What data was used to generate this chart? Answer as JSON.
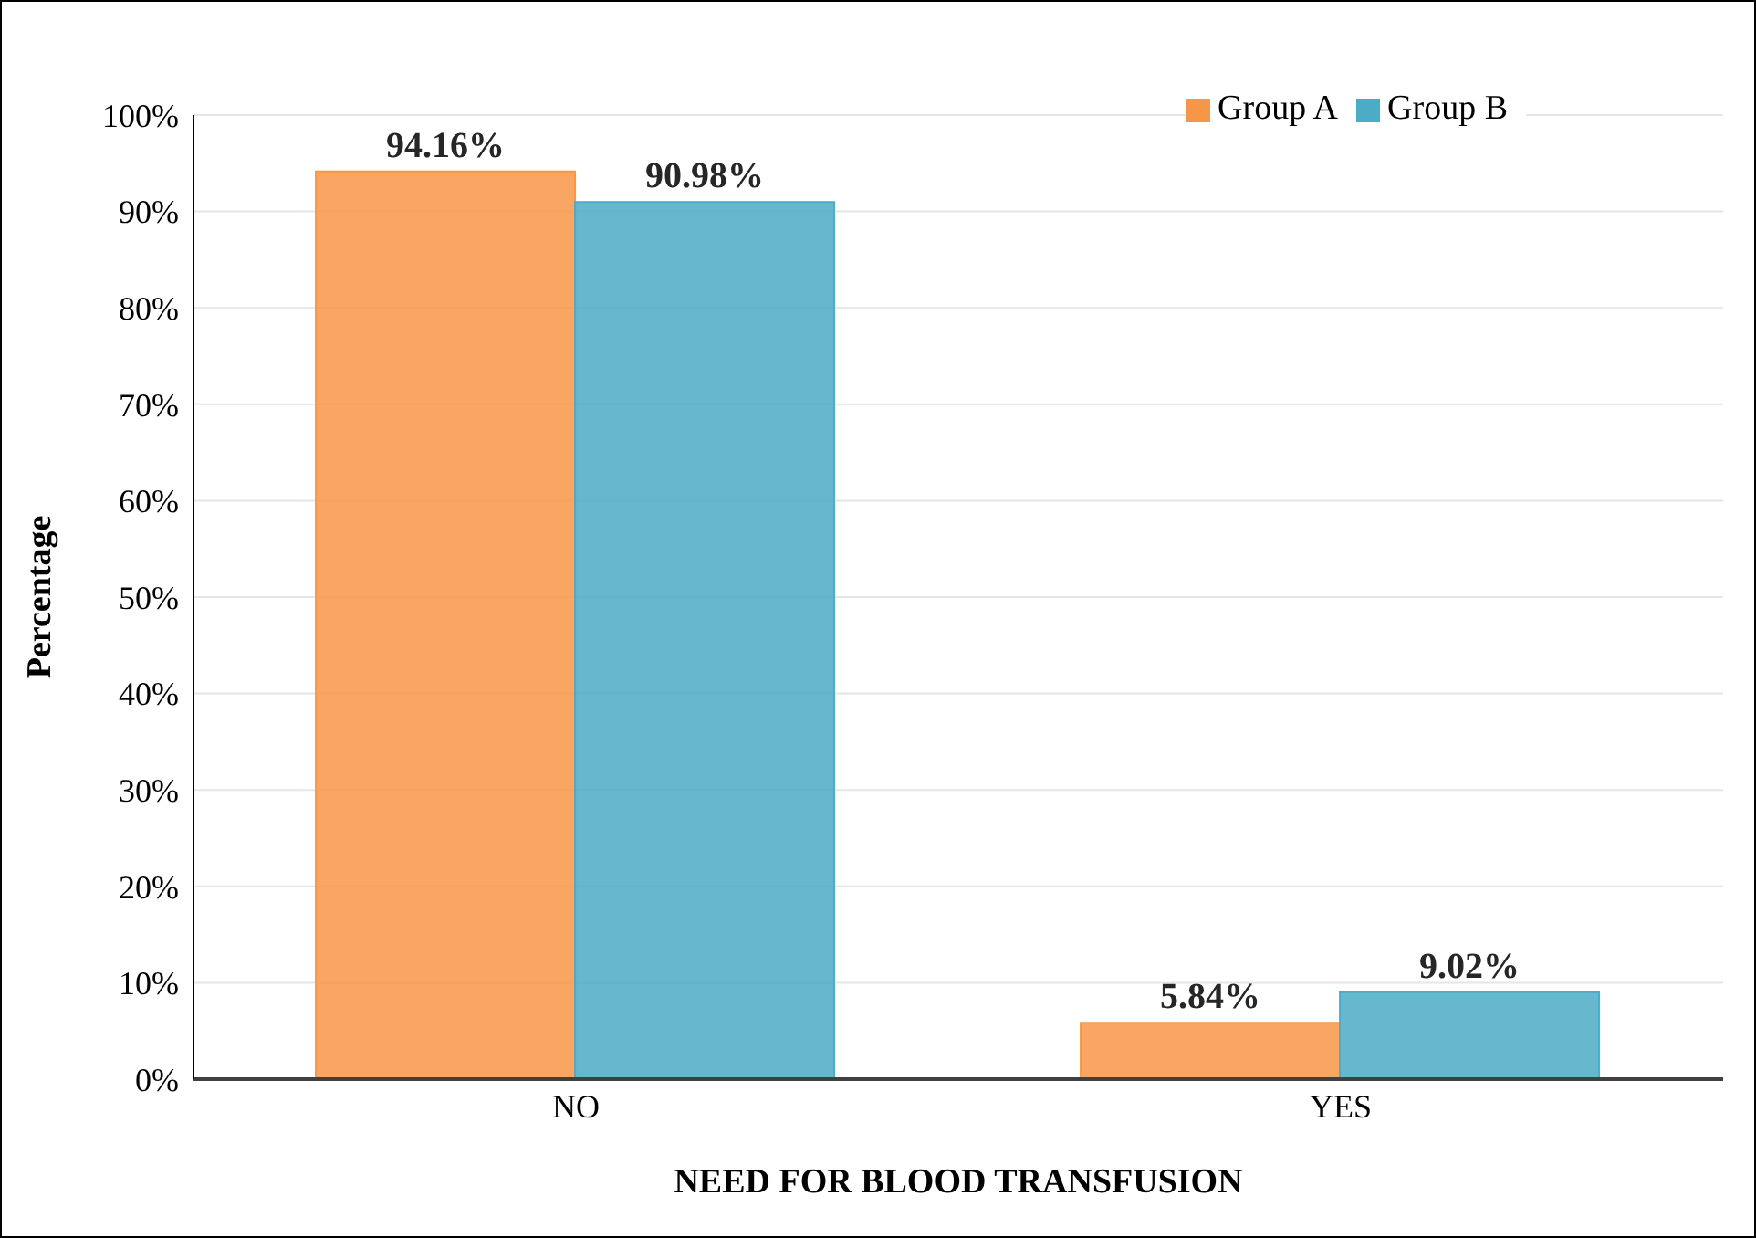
{
  "chart_data": {
    "type": "bar",
    "xlabel": "NEED FOR BLOOD TRANSFUSION",
    "ylabel": "Percentage",
    "categories": [
      "NO",
      "YES"
    ],
    "series": [
      {
        "name": "Group A",
        "color": "#f79646",
        "values": [
          94.16,
          5.84
        ],
        "value_labels": [
          "94.16%",
          "5.84%"
        ]
      },
      {
        "name": "Group B",
        "color": "#4bacc6",
        "values": [
          90.98,
          9.02
        ],
        "value_labels": [
          "90.98%",
          "9.02%"
        ]
      }
    ],
    "ylim": [
      0,
      100
    ],
    "yticks": [
      {
        "value": 0,
        "label": "0%"
      },
      {
        "value": 10,
        "label": "10%"
      },
      {
        "value": 20,
        "label": "20%"
      },
      {
        "value": 30,
        "label": "30%"
      },
      {
        "value": 40,
        "label": "40%"
      },
      {
        "value": 50,
        "label": "50%"
      },
      {
        "value": 60,
        "label": "60%"
      },
      {
        "value": 70,
        "label": "70%"
      },
      {
        "value": 80,
        "label": "80%"
      },
      {
        "value": 90,
        "label": "90%"
      },
      {
        "value": 100,
        "label": "100%"
      }
    ],
    "grid": "y",
    "legend": "top right"
  }
}
